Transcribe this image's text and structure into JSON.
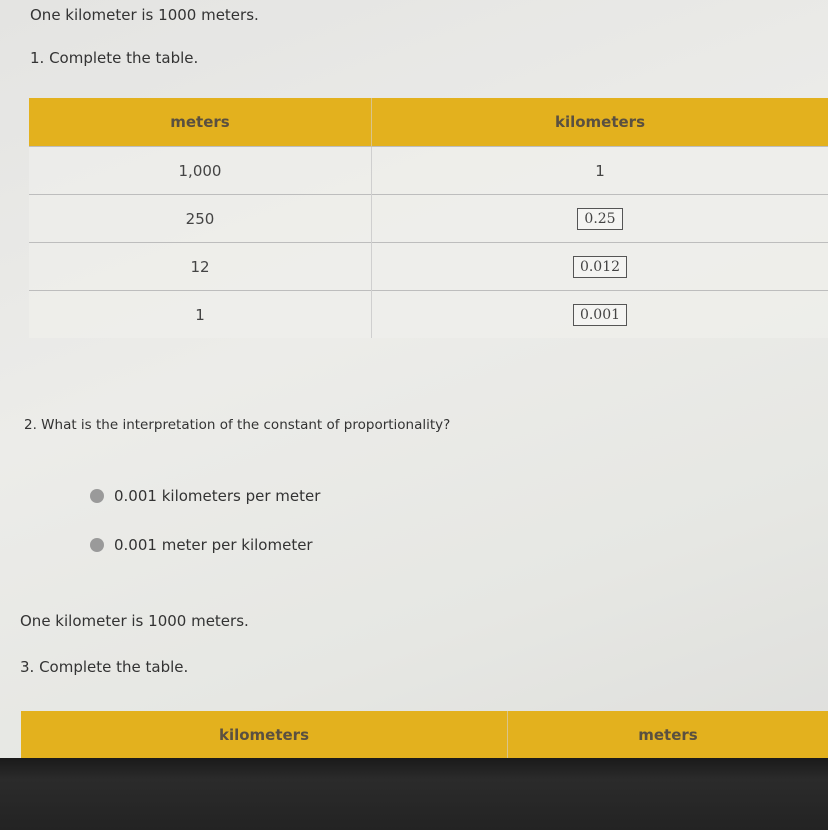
{
  "section1": {
    "intro": "One kilometer is 1000 meters.",
    "question": "1. Complete the table.",
    "table": {
      "headers": [
        "meters",
        "kilometers"
      ],
      "rows": [
        {
          "meters": "1,000",
          "kilometers": "1",
          "is_answer": false
        },
        {
          "meters": "250",
          "kilometers": "0.25",
          "is_answer": true
        },
        {
          "meters": "12",
          "kilometers": "0.012",
          "is_answer": true
        },
        {
          "meters": "1",
          "kilometers": "0.001",
          "is_answer": true
        }
      ]
    }
  },
  "section2": {
    "question": "2. What is the interpretation of the constant of proportionality?",
    "options": [
      "0.001 kilometers per meter",
      "0.001 meter per kilometer"
    ]
  },
  "section3": {
    "intro": "One kilometer is 1000 meters.",
    "question": "3. Complete the table.",
    "table": {
      "headers": [
        "kilometers",
        "meters"
      ]
    }
  },
  "colors": {
    "header": "#e3b11e"
  }
}
